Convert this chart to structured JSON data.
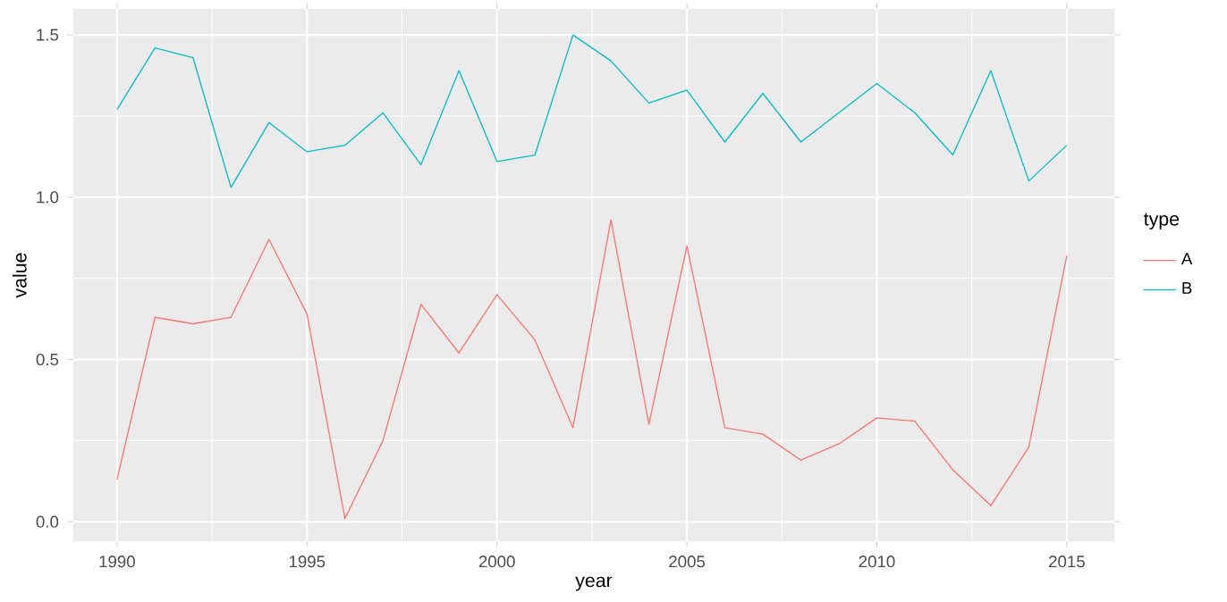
{
  "chart_data": {
    "type": "line",
    "xlabel": "year",
    "ylabel": "value",
    "legend_title": "type",
    "x": [
      1990,
      1991,
      1992,
      1993,
      1994,
      1995,
      1996,
      1997,
      1998,
      1999,
      2000,
      2001,
      2002,
      2003,
      2004,
      2005,
      2006,
      2007,
      2008,
      2009,
      2010,
      2011,
      2012,
      2013,
      2014,
      2015
    ],
    "series": [
      {
        "name": "A",
        "color": "#f8766d",
        "values": [
          0.13,
          0.63,
          0.61,
          0.63,
          0.87,
          0.64,
          0.01,
          0.25,
          0.67,
          0.52,
          0.7,
          0.56,
          0.29,
          0.93,
          0.3,
          0.85,
          0.29,
          0.27,
          0.19,
          0.24,
          0.32,
          0.31,
          0.16,
          0.05,
          0.23,
          0.82
        ]
      },
      {
        "name": "B",
        "color": "#00bfc4",
        "values": [
          1.27,
          1.46,
          1.43,
          1.03,
          1.23,
          1.14,
          1.16,
          1.26,
          1.1,
          1.39,
          1.11,
          1.13,
          1.5,
          1.42,
          1.29,
          1.33,
          1.17,
          1.32,
          1.17,
          1.26,
          1.35,
          1.26,
          1.13,
          1.39,
          1.05,
          1.16
        ]
      }
    ],
    "xlim": [
      1988.85,
      2016.25
    ],
    "ylim": [
      -0.06,
      1.58
    ],
    "xticks": [
      1990,
      1995,
      2000,
      2005,
      2010,
      2015
    ],
    "yticks": [
      {
        "value": 0,
        "label": "0.0"
      },
      {
        "value": 0.5,
        "label": "0.5"
      },
      {
        "value": 1,
        "label": "1.0"
      },
      {
        "value": 1.5,
        "label": "1.5"
      }
    ],
    "grid": true,
    "legend": "right",
    "line_style": "solid",
    "marker": "none"
  }
}
